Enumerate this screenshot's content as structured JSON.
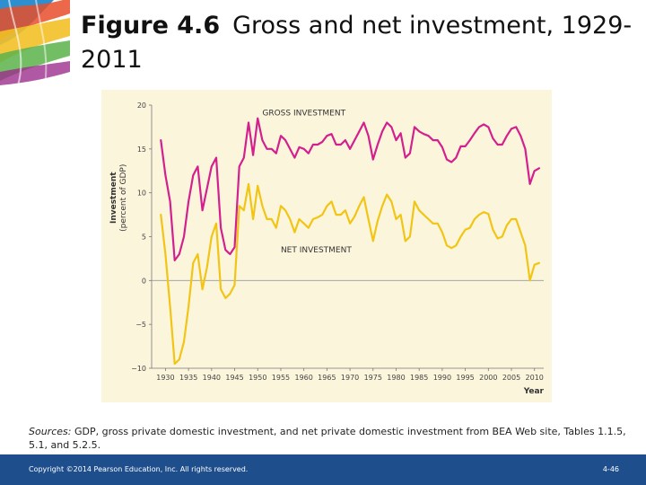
{
  "slide": {
    "title_number": "Figure 4.6",
    "title_text": "Gross and net investment, 1929-2011",
    "sources_prefix": "Sources:",
    "sources_rest": "GDP, gross private domestic investment, and net private domestic investment from BEA Web site, Tables 1.1.5, 5.1, and 5.2.5.",
    "footer_copyright": "Copyright ©2014 Pearson Education, Inc. All rights reserved.",
    "footer_page": "4-46"
  },
  "colors": {
    "gross": "#d4208f",
    "net": "#f2c515",
    "chart_bg": "#fbf5dc",
    "footer": "#1f4e8c"
  },
  "chart_data": {
    "type": "line",
    "title": "",
    "xlabel": "Year",
    "ylabel": "Investment (percent of GDP)",
    "xlim": [
      1927,
      2012
    ],
    "ylim": [
      -10,
      20
    ],
    "x_ticks": [
      1930,
      1935,
      1940,
      1945,
      1950,
      1955,
      1960,
      1965,
      1970,
      1975,
      1980,
      1985,
      1990,
      1995,
      2000,
      2005,
      2010
    ],
    "y_ticks": [
      -10,
      -5,
      0,
      5,
      10,
      15,
      20
    ],
    "grid": false,
    "zero_line": true,
    "series": [
      {
        "name": "GROSS INVESTMENT",
        "color": "#d4208f",
        "x": [
          1929,
          1930,
          1931,
          1932,
          1933,
          1934,
          1935,
          1936,
          1937,
          1938,
          1939,
          1940,
          1941,
          1942,
          1943,
          1944,
          1945,
          1946,
          1947,
          1948,
          1949,
          1950,
          1951,
          1952,
          1953,
          1954,
          1955,
          1956,
          1957,
          1958,
          1959,
          1960,
          1961,
          1962,
          1963,
          1964,
          1965,
          1966,
          1967,
          1968,
          1969,
          1970,
          1971,
          1972,
          1973,
          1974,
          1975,
          1976,
          1977,
          1978,
          1979,
          1980,
          1981,
          1982,
          1983,
          1984,
          1985,
          1986,
          1987,
          1988,
          1989,
          1990,
          1991,
          1992,
          1993,
          1994,
          1995,
          1996,
          1997,
          1998,
          1999,
          2000,
          2001,
          2002,
          2003,
          2004,
          2005,
          2006,
          2007,
          2008,
          2009,
          2010,
          2011
        ],
        "y": [
          16,
          12,
          9,
          2.3,
          3,
          5,
          9,
          12,
          13,
          8,
          10.5,
          13,
          14,
          6,
          3.5,
          3,
          3.8,
          13,
          14,
          18,
          14.3,
          18.5,
          16,
          15,
          15,
          14.5,
          16.5,
          16,
          15,
          14,
          15.2,
          15,
          14.5,
          15.5,
          15.5,
          15.8,
          16.5,
          16.7,
          15.5,
          15.5,
          16,
          15,
          16,
          17,
          18,
          16.5,
          13.8,
          15.5,
          17,
          18,
          17.5,
          16,
          16.8,
          14,
          14.5,
          17.5,
          17,
          16.7,
          16.5,
          16,
          16,
          15.2,
          13.8,
          13.5,
          14,
          15.3,
          15.3,
          16,
          16.8,
          17.5,
          17.8,
          17.5,
          16.2,
          15.5,
          15.5,
          16.5,
          17.3,
          17.5,
          16.5,
          15,
          11,
          12.5,
          12.8
        ]
      },
      {
        "name": "NET INVESTMENT",
        "color": "#f2c515",
        "x": [
          1929,
          1930,
          1931,
          1932,
          1933,
          1934,
          1935,
          1936,
          1937,
          1938,
          1939,
          1940,
          1941,
          1942,
          1943,
          1944,
          1945,
          1946,
          1947,
          1948,
          1949,
          1950,
          1951,
          1952,
          1953,
          1954,
          1955,
          1956,
          1957,
          1958,
          1959,
          1960,
          1961,
          1962,
          1963,
          1964,
          1965,
          1966,
          1967,
          1968,
          1969,
          1970,
          1971,
          1972,
          1973,
          1974,
          1975,
          1976,
          1977,
          1978,
          1979,
          1980,
          1981,
          1982,
          1983,
          1984,
          1985,
          1986,
          1987,
          1988,
          1989,
          1990,
          1991,
          1992,
          1993,
          1994,
          1995,
          1996,
          1997,
          1998,
          1999,
          2000,
          2001,
          2002,
          2003,
          2004,
          2005,
          2006,
          2007,
          2008,
          2009,
          2010,
          2011
        ],
        "y": [
          7.5,
          3,
          -3,
          -9.5,
          -9,
          -7,
          -3,
          2,
          3,
          -1,
          1.5,
          5,
          6.5,
          -1,
          -2,
          -1.5,
          -0.5,
          8.5,
          8,
          11,
          7,
          10.8,
          8.5,
          7,
          7,
          6,
          8.5,
          8,
          7,
          5.5,
          7,
          6.5,
          6,
          7,
          7.2,
          7.5,
          8.5,
          9,
          7.5,
          7.5,
          8,
          6.5,
          7.3,
          8.5,
          9.5,
          7,
          4.5,
          6.8,
          8.5,
          9.8,
          9,
          7,
          7.5,
          4.5,
          5,
          9,
          8,
          7.5,
          7,
          6.5,
          6.5,
          5.5,
          4,
          3.7,
          4,
          5,
          5.8,
          6,
          7,
          7.5,
          7.8,
          7.6,
          5.8,
          4.8,
          5,
          6.3,
          7,
          7,
          5.5,
          4,
          0,
          1.8,
          2
        ]
      }
    ],
    "annotations": [
      {
        "text": "GROSS INVESTMENT",
        "series": "GROSS INVESTMENT"
      },
      {
        "text": "NET INVESTMENT",
        "series": "NET INVESTMENT"
      }
    ]
  }
}
